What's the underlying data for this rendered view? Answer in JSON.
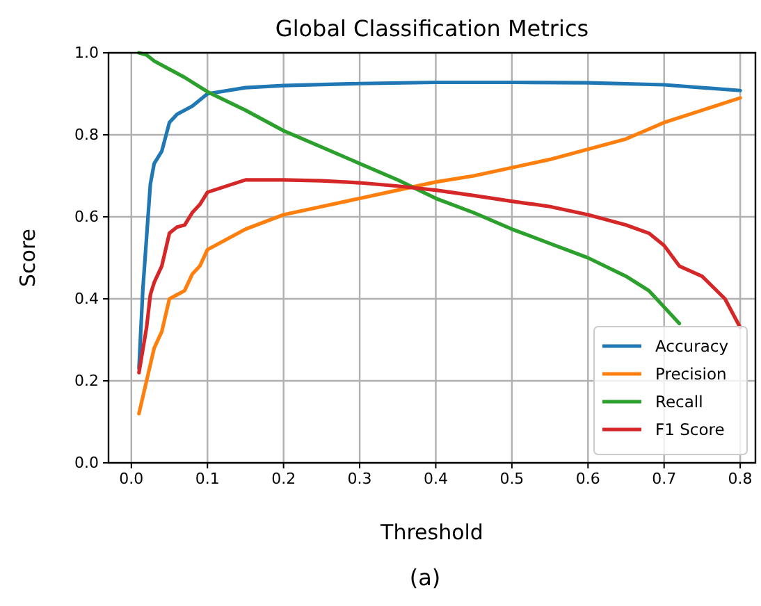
{
  "chart_data": {
    "type": "line",
    "title": "Global Classification Metrics",
    "xlabel": "Threshold",
    "ylabel": "Score",
    "annotations": [
      "(a)"
    ],
    "xlim": [
      -0.03,
      0.82
    ],
    "ylim": [
      0,
      1
    ],
    "xticks": [
      {
        "value": 0,
        "label": "0.0"
      },
      0.1,
      0.2,
      0.3,
      0.4,
      0.5,
      0.6,
      0.7,
      0.8
    ],
    "yticks": [
      {
        "value": 0,
        "label": "0.0"
      },
      0.2,
      0.4,
      0.6,
      0.8,
      {
        "value": 1,
        "label": "1.0"
      }
    ],
    "grid": true,
    "legend": "bottom right",
    "line_style": "solid",
    "series": [
      {
        "name": "Accuracy",
        "color": "#1f77b4",
        "x": [
          0.01,
          0.015,
          0.02,
          0.025,
          0.03,
          0.04,
          0.05,
          0.06,
          0.08,
          0.1,
          0.15,
          0.2,
          0.3,
          0.4,
          0.5,
          0.6,
          0.7,
          0.8
        ],
        "values": [
          0.23,
          0.42,
          0.55,
          0.68,
          0.73,
          0.76,
          0.83,
          0.85,
          0.87,
          0.9,
          0.915,
          0.92,
          0.925,
          0.928,
          0.928,
          0.927,
          0.922,
          0.908
        ]
      },
      {
        "name": "Precision",
        "color": "#ff7f0e",
        "x": [
          0.01,
          0.02,
          0.03,
          0.04,
          0.05,
          0.06,
          0.07,
          0.08,
          0.09,
          0.1,
          0.15,
          0.2,
          0.25,
          0.3,
          0.35,
          0.4,
          0.45,
          0.5,
          0.55,
          0.6,
          0.65,
          0.7,
          0.75,
          0.8
        ],
        "values": [
          0.12,
          0.2,
          0.28,
          0.32,
          0.4,
          0.41,
          0.42,
          0.46,
          0.48,
          0.52,
          0.57,
          0.605,
          0.625,
          0.645,
          0.665,
          0.685,
          0.7,
          0.72,
          0.74,
          0.765,
          0.79,
          0.83,
          0.86,
          0.89
        ]
      },
      {
        "name": "Recall",
        "color": "#2ca02c",
        "x": [
          0.01,
          0.02,
          0.03,
          0.05,
          0.07,
          0.1,
          0.15,
          0.2,
          0.25,
          0.3,
          0.35,
          0.4,
          0.45,
          0.5,
          0.55,
          0.6,
          0.65,
          0.68,
          0.7,
          0.72
        ],
        "values": [
          1.0,
          0.995,
          0.98,
          0.96,
          0.94,
          0.905,
          0.86,
          0.81,
          0.77,
          0.73,
          0.69,
          0.645,
          0.61,
          0.57,
          0.535,
          0.5,
          0.455,
          0.42,
          0.38,
          0.34
        ]
      },
      {
        "name": "F1 Score",
        "color": "#d62728",
        "x": [
          0.01,
          0.02,
          0.025,
          0.03,
          0.04,
          0.05,
          0.06,
          0.07,
          0.08,
          0.09,
          0.1,
          0.15,
          0.2,
          0.25,
          0.3,
          0.35,
          0.4,
          0.45,
          0.5,
          0.55,
          0.6,
          0.65,
          0.68,
          0.7,
          0.72,
          0.75,
          0.78,
          0.8
        ],
        "values": [
          0.22,
          0.33,
          0.41,
          0.44,
          0.48,
          0.56,
          0.575,
          0.58,
          0.61,
          0.63,
          0.66,
          0.69,
          0.69,
          0.688,
          0.683,
          0.675,
          0.665,
          0.652,
          0.638,
          0.625,
          0.605,
          0.58,
          0.56,
          0.53,
          0.48,
          0.455,
          0.4,
          0.33
        ]
      }
    ]
  }
}
